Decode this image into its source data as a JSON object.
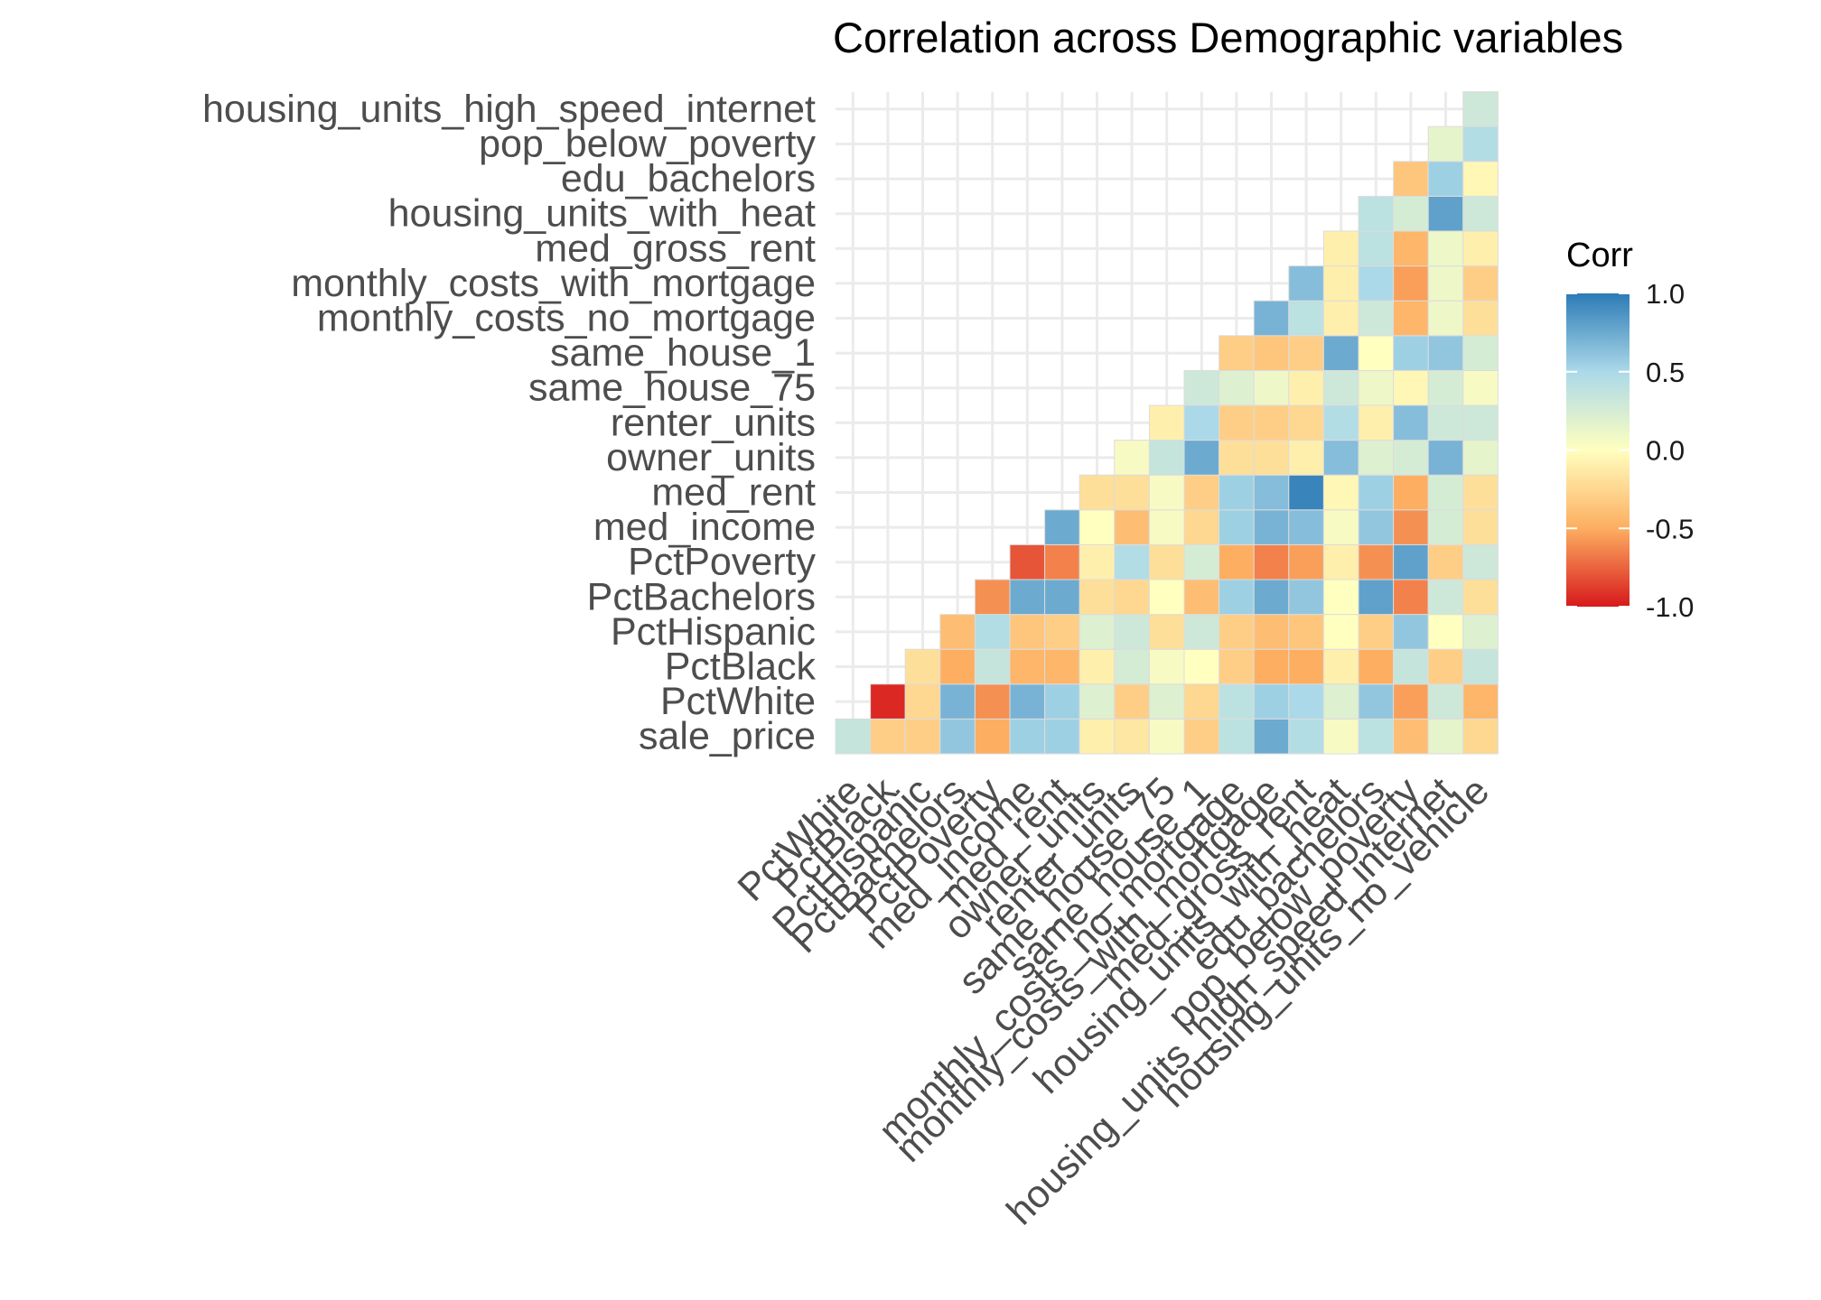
{
  "chart_data": {
    "type": "heatmap",
    "title": "Correlation across Demographic variables",
    "x_categories": [
      "PctWhite",
      "PctBlack",
      "PctHispanic",
      "PctBachelors",
      "PctPoverty",
      "med_income",
      "med_rent",
      "owner_units",
      "renter_units",
      "same_house_75",
      "same_house_1",
      "monthly_costs_no_mortgage",
      "monthly_costs_with_mortgage",
      "med_gross_rent",
      "housing_units_with_heat",
      "edu_bachelors",
      "pop_below_poverty",
      "housing_units_high_speed_internet",
      "housing_units_no_vehicle"
    ],
    "y_categories": [
      "sale_price",
      "PctWhite",
      "PctBlack",
      "PctHispanic",
      "PctBachelors",
      "PctPoverty",
      "med_income",
      "med_rent",
      "owner_units",
      "renter_units",
      "same_house_75",
      "same_house_1",
      "monthly_costs_no_mortgage",
      "monthly_costs_with_mortgage",
      "med_gross_rent",
      "housing_units_with_heat",
      "edu_bachelors",
      "pop_below_poverty",
      "housing_units_high_speed_internet"
    ],
    "values": [
      [
        0.35,
        -0.3,
        -0.3,
        0.6,
        -0.5,
        0.55,
        0.55,
        -0.1,
        -0.15,
        0.05,
        -0.3,
        0.4,
        0.75,
        0.45,
        0.05,
        0.4,
        -0.4,
        0.15,
        -0.25
      ],
      [
        null,
        -0.95,
        -0.25,
        0.7,
        -0.6,
        0.7,
        0.55,
        0.2,
        -0.3,
        0.2,
        -0.25,
        0.4,
        0.55,
        0.5,
        0.2,
        0.6,
        -0.55,
        0.3,
        -0.45
      ],
      [
        null,
        null,
        -0.2,
        -0.5,
        0.35,
        -0.45,
        -0.45,
        -0.1,
        0.25,
        0.05,
        0.0,
        -0.3,
        -0.5,
        -0.5,
        -0.1,
        -0.5,
        0.35,
        -0.3,
        0.35
      ],
      [
        null,
        null,
        null,
        -0.4,
        0.45,
        -0.35,
        -0.3,
        0.2,
        0.3,
        -0.2,
        0.3,
        -0.3,
        -0.4,
        -0.35,
        0.0,
        -0.3,
        0.6,
        0.0,
        0.2
      ],
      [
        null,
        null,
        null,
        null,
        -0.6,
        0.75,
        0.75,
        -0.2,
        -0.25,
        0.0,
        -0.4,
        0.55,
        0.75,
        0.6,
        0.0,
        0.8,
        -0.65,
        0.3,
        -0.2
      ],
      [
        null,
        null,
        null,
        null,
        null,
        -0.8,
        -0.65,
        -0.1,
        0.45,
        -0.2,
        0.25,
        -0.5,
        -0.65,
        -0.55,
        -0.1,
        -0.6,
        0.8,
        -0.3,
        0.3
      ],
      [
        null,
        null,
        null,
        null,
        null,
        null,
        0.75,
        0.0,
        -0.4,
        0.05,
        -0.25,
        0.55,
        0.7,
        0.65,
        0.05,
        0.6,
        -0.6,
        0.25,
        -0.2
      ],
      [
        null,
        null,
        null,
        null,
        null,
        null,
        null,
        -0.2,
        -0.2,
        0.05,
        -0.3,
        0.55,
        0.65,
        0.95,
        -0.05,
        0.55,
        -0.5,
        0.25,
        -0.2
      ],
      [
        null,
        null,
        null,
        null,
        null,
        null,
        null,
        null,
        0.05,
        0.35,
        0.75,
        -0.2,
        -0.2,
        -0.1,
        0.65,
        0.2,
        0.25,
        0.7,
        0.15
      ],
      [
        null,
        null,
        null,
        null,
        null,
        null,
        null,
        null,
        null,
        -0.1,
        0.5,
        -0.3,
        -0.3,
        -0.25,
        0.45,
        -0.1,
        0.65,
        0.3,
        0.3
      ],
      [
        null,
        null,
        null,
        null,
        null,
        null,
        null,
        null,
        null,
        null,
        0.3,
        0.2,
        0.1,
        -0.1,
        0.3,
        0.1,
        -0.05,
        0.25,
        0.05
      ],
      [
        null,
        null,
        null,
        null,
        null,
        null,
        null,
        null,
        null,
        null,
        null,
        -0.3,
        -0.35,
        -0.3,
        0.75,
        0.0,
        0.55,
        0.6,
        0.25
      ],
      [
        null,
        null,
        null,
        null,
        null,
        null,
        null,
        null,
        null,
        null,
        null,
        null,
        0.7,
        0.4,
        -0.1,
        0.3,
        -0.45,
        0.1,
        -0.2
      ],
      [
        null,
        null,
        null,
        null,
        null,
        null,
        null,
        null,
        null,
        null,
        null,
        null,
        null,
        0.65,
        -0.1,
        0.5,
        -0.55,
        0.1,
        -0.3
      ],
      [
        null,
        null,
        null,
        null,
        null,
        null,
        null,
        null,
        null,
        null,
        null,
        null,
        null,
        null,
        -0.1,
        0.4,
        -0.45,
        0.1,
        -0.1
      ],
      [
        null,
        null,
        null,
        null,
        null,
        null,
        null,
        null,
        null,
        null,
        null,
        null,
        null,
        null,
        null,
        0.4,
        0.25,
        0.8,
        0.3
      ],
      [
        null,
        null,
        null,
        null,
        null,
        null,
        null,
        null,
        null,
        null,
        null,
        null,
        null,
        null,
        null,
        null,
        -0.35,
        0.55,
        -0.05
      ],
      [
        null,
        null,
        null,
        null,
        null,
        null,
        null,
        null,
        null,
        null,
        null,
        null,
        null,
        null,
        null,
        null,
        null,
        0.15,
        0.45
      ],
      [
        null,
        null,
        null,
        null,
        null,
        null,
        null,
        null,
        null,
        null,
        null,
        null,
        null,
        null,
        null,
        null,
        null,
        null,
        0.3
      ]
    ],
    "legend": {
      "title": "Corr",
      "ticks": [
        "1.0",
        "0.5",
        "0.0",
        "-0.5",
        "-1.0"
      ],
      "tick_values": [
        1.0,
        0.5,
        0.0,
        -0.5,
        -1.0
      ],
      "range": [
        -1.0,
        1.0
      ],
      "placement": "right"
    },
    "color_scale": [
      "#d7191c",
      "#fdae61",
      "#ffffbf",
      "#abd9e9",
      "#2c7bb6"
    ],
    "grid": true
  }
}
